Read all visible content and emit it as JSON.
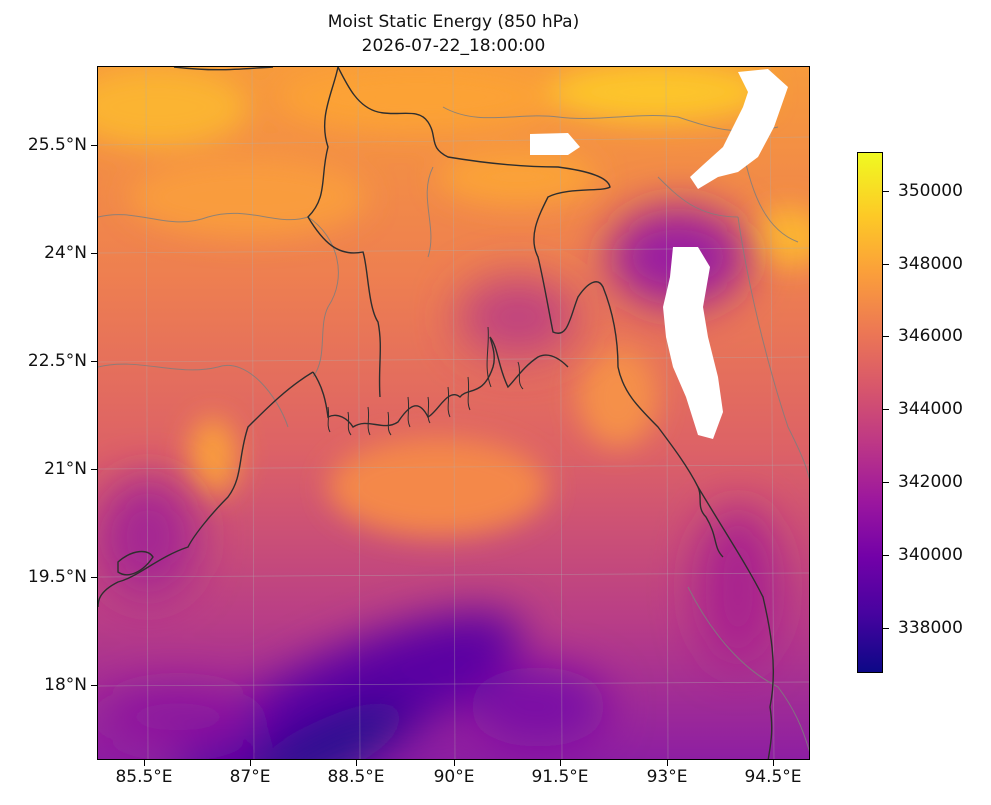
{
  "title": "Moist Static Energy (850 hPa)",
  "subtitle": "2026-07-22_18:00:00",
  "map": {
    "extent": {
      "lon_min": 84.85,
      "lon_max": 95.05,
      "lat_min": 16.95,
      "lat_max": 26.45
    },
    "projection": "PlateCarree",
    "colormap": "plasma",
    "missing_value_color": "#ffffff",
    "coastline_color": "#333333",
    "border_color": "#808080",
    "gridlines": true,
    "lat_ticks": [
      {
        "value": 25.5,
        "label": "25.5°N"
      },
      {
        "value": 24,
        "label": "24°N"
      },
      {
        "value": 22.5,
        "label": "22.5°N"
      },
      {
        "value": 21,
        "label": "21°N"
      },
      {
        "value": 19.5,
        "label": "19.5°N"
      },
      {
        "value": 18,
        "label": "18°N"
      }
    ],
    "lon_ticks": [
      {
        "value": 85.5,
        "label": "85.5°E"
      },
      {
        "value": 87,
        "label": "87°E"
      },
      {
        "value": 88.5,
        "label": "88.5°E"
      },
      {
        "value": 90,
        "label": "90°E"
      },
      {
        "value": 91.5,
        "label": "91.5°E"
      },
      {
        "value": 93,
        "label": "93°E"
      },
      {
        "value": 94.5,
        "label": "94.5°E"
      }
    ]
  },
  "colorbar": {
    "min": 336800,
    "max": 351000,
    "ticks": [
      {
        "value": 350000,
        "label": "350000"
      },
      {
        "value": 348000,
        "label": "348000"
      },
      {
        "value": 346000,
        "label": "346000"
      },
      {
        "value": 344000,
        "label": "344000"
      },
      {
        "value": 342000,
        "label": "342000"
      },
      {
        "value": 340000,
        "label": "340000"
      },
      {
        "value": 338000,
        "label": "338000"
      }
    ]
  }
}
